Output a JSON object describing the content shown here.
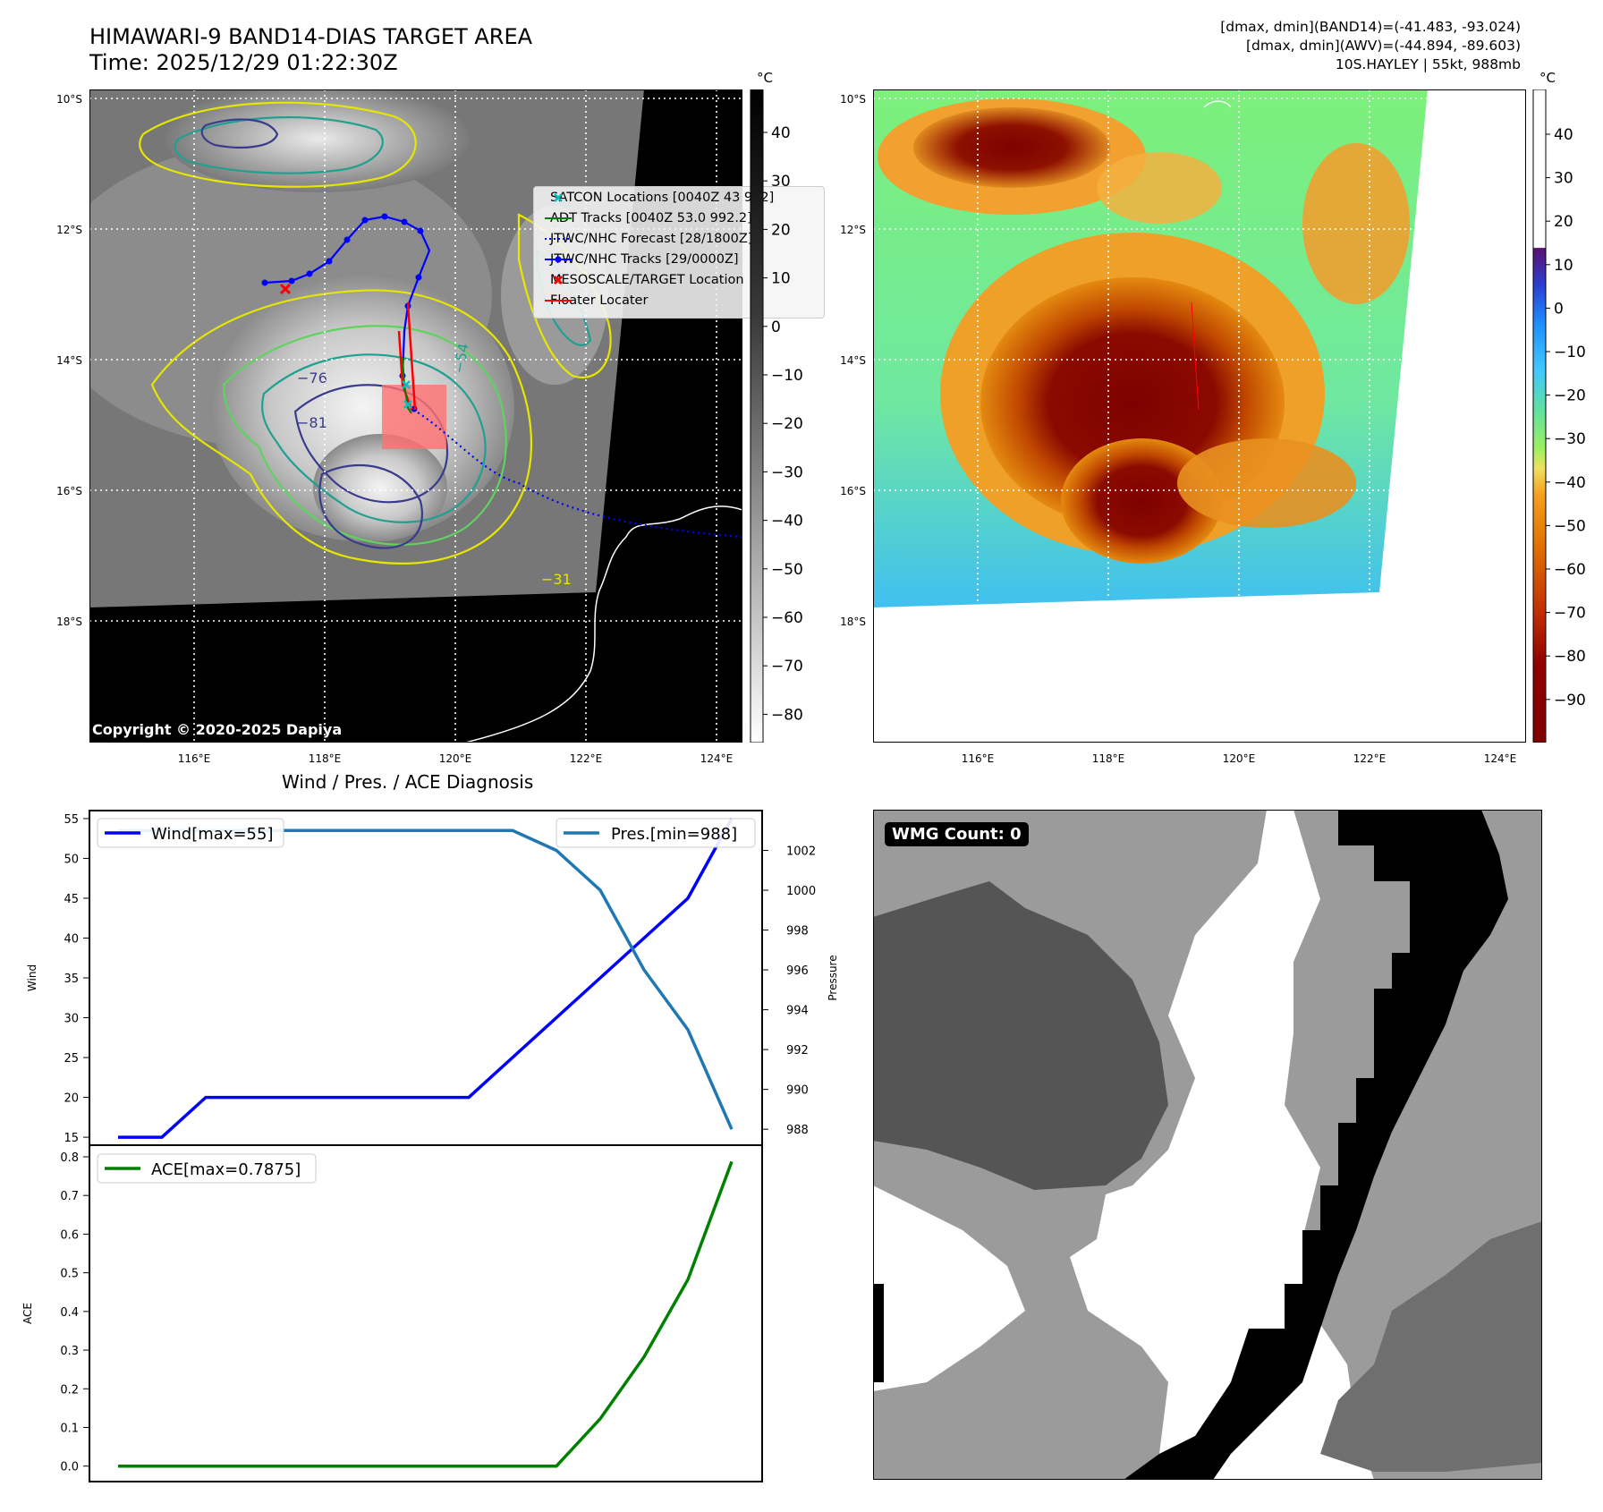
{
  "header": {
    "title_line1": "HIMAWARI-9 BAND14-DIAS TARGET AREA",
    "title_line2": "Time: 2025/12/29 01:22:30Z",
    "meta_line1": "[dmax, dmin](BAND14)=(-41.483, -93.024)",
    "meta_line2": "[dmax, dmin](AWV)=(-44.894, -89.603)",
    "meta_line3": "10S.HAYLEY | 55kt, 988mb"
  },
  "ir_panel": {
    "colorbar_unit": "°C",
    "colorbar_ticks": [
      "40",
      "30",
      "20",
      "10",
      "0",
      "−10",
      "−20",
      "−30",
      "−40",
      "−50",
      "−60",
      "−70",
      "−80"
    ],
    "lat_labels": [
      "10°S",
      "12°S",
      "14°S",
      "16°S",
      "18°S"
    ],
    "lon_labels": [
      "116°E",
      "118°E",
      "120°E",
      "122°E",
      "124°E"
    ],
    "contour_labels": [
      "−76",
      "−81",
      "−54",
      "−31"
    ],
    "copyright": "Copyright © 2020-2025 Dapiya",
    "legend": [
      {
        "label": "SATCON Locations [0040Z 43 992]",
        "color": "#00bfbf"
      },
      {
        "label": "ADT Tracks [0040Z 53.0 992.2]",
        "color": "#007f00"
      },
      {
        "label": "JTWC/NHC Forecast [28/1800Z]",
        "color": "#0000ff"
      },
      {
        "label": "JTWC/NHC Tracks [29/0000Z]",
        "color": "#0000ff"
      },
      {
        "label": "MESOSCALE/TARGET Location",
        "color": "#ff0000"
      },
      {
        "label": "Floater Locater",
        "color": "#ff0000"
      }
    ]
  },
  "awv_panel": {
    "colorbar_unit": "°C",
    "colorbar_ticks": [
      "40",
      "30",
      "20",
      "10",
      "0",
      "−10",
      "−20",
      "−30",
      "−40",
      "−50",
      "−60",
      "−70",
      "−80",
      "−90"
    ],
    "lat_labels": [
      "10°S",
      "12°S",
      "14°S",
      "16°S",
      "18°S"
    ],
    "lon_labels": [
      "116°E",
      "118°E",
      "120°E",
      "122°E",
      "124°E"
    ]
  },
  "wind_panel": {
    "title": "Wind / Pres. / ACE Diagnosis",
    "wind_ylabel": "Wind",
    "pres_ylabel": "Pressure",
    "ace_ylabel": "ACE",
    "wind_legend": "Wind[max=55]",
    "pres_legend": "Pres.[min=988]",
    "ace_legend": "ACE[max=0.7875]",
    "colors": {
      "wind": "#0000ff",
      "pres": "#1f77b4",
      "ace": "#008000"
    }
  },
  "wmg_panel": {
    "badge": "WMG Count: 0"
  },
  "chart_data": [
    {
      "type": "line",
      "title": "Wind / Pres. / ACE Diagnosis",
      "ylabel": "Wind",
      "ylim": [
        14,
        56
      ],
      "yticks": [
        15,
        20,
        25,
        30,
        35,
        40,
        45,
        50,
        55
      ],
      "series": [
        {
          "name": "Wind[max=55]",
          "x": [
            0,
            1,
            2,
            3,
            4,
            5,
            6,
            7,
            8,
            9,
            10,
            11,
            12,
            13,
            14
          ],
          "values": [
            15,
            15,
            20,
            20,
            20,
            20,
            20,
            20,
            20,
            25,
            30,
            35,
            40,
            45,
            55
          ]
        }
      ],
      "legend_position": "upper-left"
    },
    {
      "type": "line",
      "ylabel": "Pressure",
      "ylim": [
        987.2,
        1004.0
      ],
      "yticks": [
        988,
        990,
        992,
        994,
        996,
        998,
        1000,
        1002
      ],
      "series": [
        {
          "name": "Pres.[min=988]",
          "x": [
            0,
            1,
            2,
            3,
            4,
            5,
            6,
            7,
            8,
            9,
            10,
            11,
            12,
            13,
            14
          ],
          "values": [
            1003,
            1003,
            1003,
            1003,
            1003,
            1003,
            1003,
            1003,
            1003,
            1003,
            1002,
            1000,
            996,
            993,
            988
          ]
        }
      ],
      "legend_position": "upper-right"
    },
    {
      "type": "line",
      "ylabel": "ACE",
      "ylim": [
        -0.04,
        0.83
      ],
      "yticks": [
        0.0,
        0.1,
        0.2,
        0.3,
        0.4,
        0.5,
        0.6,
        0.7,
        0.8
      ],
      "series": [
        {
          "name": "ACE[max=0.7875]",
          "x": [
            0,
            1,
            2,
            3,
            4,
            5,
            6,
            7,
            8,
            9,
            10,
            11,
            12,
            13,
            14
          ],
          "values": [
            0,
            0,
            0,
            0,
            0,
            0,
            0,
            0,
            0,
            0,
            0,
            0.1225,
            0.2825,
            0.4825,
            0.7875
          ]
        }
      ],
      "legend_position": "upper-left"
    }
  ]
}
